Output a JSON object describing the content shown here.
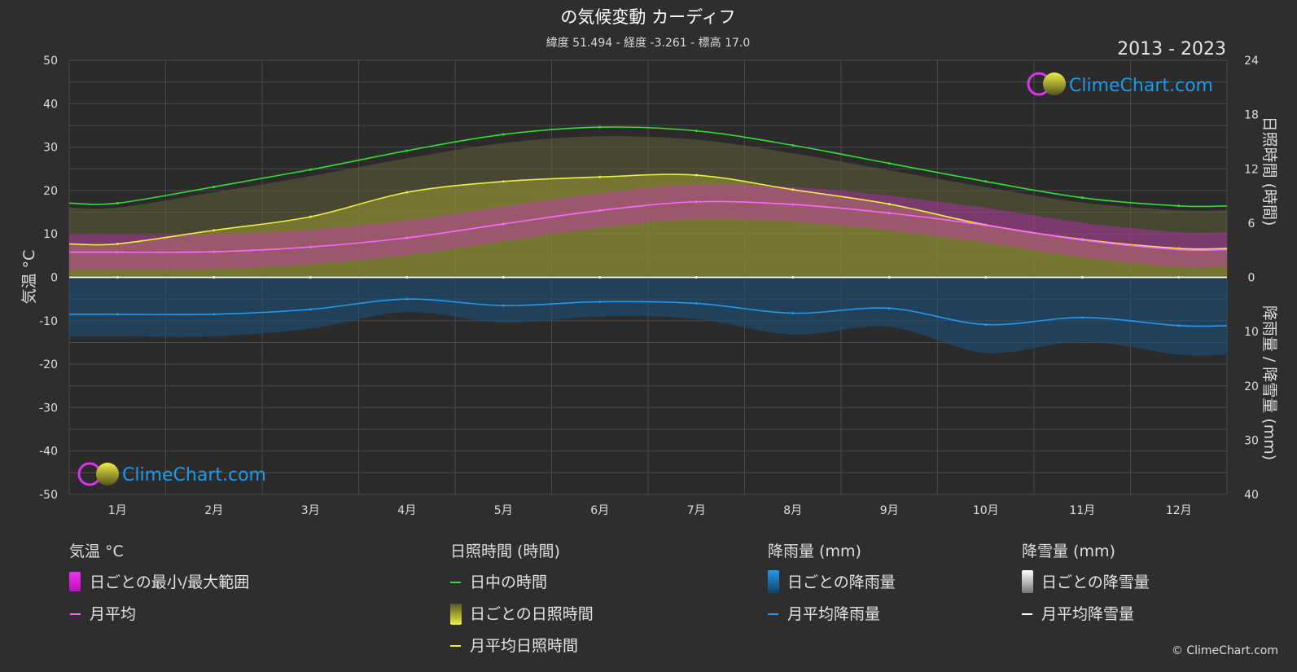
{
  "header": {
    "title": "の気候変動 カーディフ",
    "subtitle": "緯度 51.494 - 経度 -3.261 - 標高 17.0",
    "years": "2013 - 2023"
  },
  "axes": {
    "left_title": "気温 °C",
    "right_top_title": "日照時間 (時間)",
    "right_bottom_title": "降雨量 / 降雪量 (mm)"
  },
  "logo": {
    "text": "ClimeChart.com"
  },
  "copyright": "© ClimeChart.com",
  "legend": {
    "temp": {
      "head": "気温 °C",
      "range": "日ごとの最小/最大範囲",
      "avg": "月平均"
    },
    "sun": {
      "head": "日照時間 (時間)",
      "daylight": "日中の時間",
      "daily": "日ごとの日照時間",
      "avg": "月平均日照時間"
    },
    "rain": {
      "head": "降雨量 (mm)",
      "daily": "日ごとの降雨量",
      "avg": "月平均降雨量"
    },
    "snow": {
      "head": "降雪量 (mm)",
      "daily": "日ごとの降雪量",
      "avg": "月平均降雪量"
    }
  },
  "colors": {
    "daylight": "#33dd33",
    "sunshine": "#eeee44",
    "temp_avg": "#ff66ff",
    "temp_range": "#dd22dd",
    "rain": "#2299ee",
    "snow": "#ffffff",
    "sun_fill": "#9a9a30",
    "rain_fill": "#1a4f7a"
  },
  "chart_data": {
    "type": "line",
    "categories": [
      "1月",
      "2月",
      "3月",
      "4月",
      "5月",
      "6月",
      "7月",
      "8月",
      "9月",
      "10月",
      "11月",
      "12月"
    ],
    "left_axis": {
      "label": "気温 °C",
      "ylim": [
        -50,
        50
      ],
      "ticks": [
        50,
        40,
        30,
        20,
        10,
        0,
        -10,
        -20,
        -30,
        -40,
        -50
      ]
    },
    "right_axis_top": {
      "label": "日照時間 (時間)",
      "ylim": [
        0,
        24
      ],
      "ticks": [
        24,
        18,
        12,
        6,
        0
      ]
    },
    "right_axis_bottom": {
      "label": "降雨量 / 降雪量 (mm)",
      "ylim": [
        0,
        40
      ],
      "ticks": [
        0,
        10,
        20,
        30,
        40
      ]
    },
    "grid": true,
    "series": [
      {
        "name": "日中の時間",
        "axis": "sunshine_hours",
        "values": [
          8.2,
          10.0,
          11.9,
          14.0,
          15.8,
          16.6,
          16.2,
          14.6,
          12.6,
          10.6,
          8.8,
          7.9
        ]
      },
      {
        "name": "月平均日照時間",
        "axis": "sunshine_hours",
        "values": [
          3.7,
          5.2,
          6.7,
          9.4,
          10.6,
          11.1,
          11.3,
          9.7,
          8.1,
          5.8,
          4.2,
          3.2
        ]
      },
      {
        "name": "月平均",
        "axis": "temperature_c",
        "values": [
          5.8,
          5.9,
          7.0,
          9.1,
          12.3,
          15.4,
          17.4,
          16.8,
          14.8,
          12.0,
          8.6,
          6.4
        ]
      },
      {
        "name": "月平均降雨量",
        "axis": "precipitation_mm",
        "values": [
          6.8,
          6.8,
          5.9,
          4.0,
          5.2,
          4.5,
          4.8,
          6.6,
          5.7,
          8.7,
          7.4,
          8.9
        ]
      },
      {
        "name": "月平均降雪量",
        "axis": "precipitation_mm",
        "values": [
          0,
          0,
          0,
          0,
          0,
          0,
          0,
          0,
          0,
          0,
          0,
          0
        ]
      }
    ]
  }
}
